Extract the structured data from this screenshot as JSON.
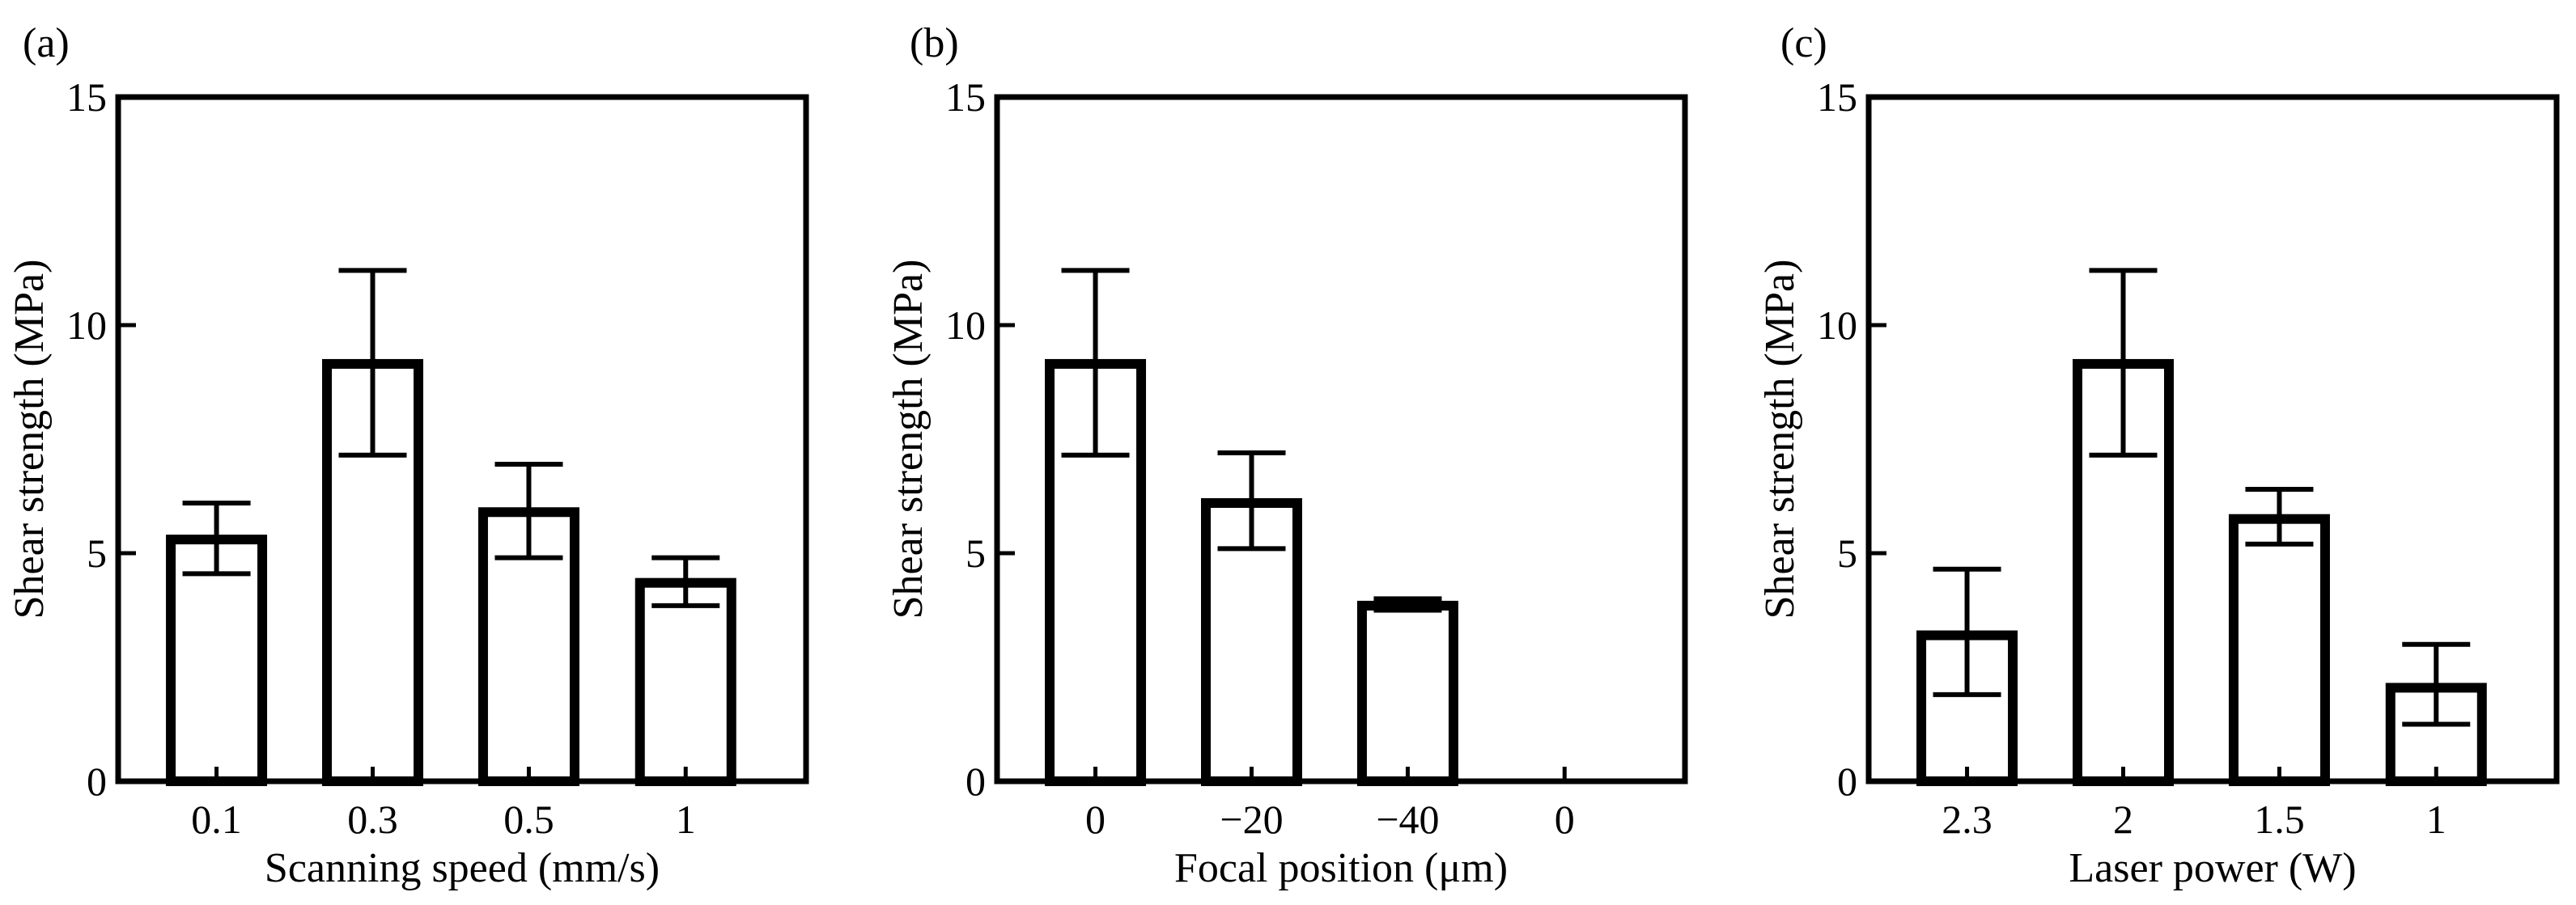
{
  "chart_data": [
    {
      "type": "bar",
      "panel_label": "(a)",
      "categories": [
        "0.1",
        "0.3",
        "0.5",
        "1"
      ],
      "values": [
        5.3,
        9.15,
        5.9,
        4.35
      ],
      "error_bars": [
        {
          "low": 4.55,
          "high": 6.1
        },
        {
          "low": 7.15,
          "high": 11.2
        },
        {
          "low": 4.9,
          "high": 6.95
        },
        {
          "low": 3.85,
          "high": 4.9
        }
      ],
      "xlabel": "Scanning speed (mm/s)",
      "ylabel": "Shear strength (MPa)",
      "ylim": [
        0,
        15
      ],
      "yticks": [
        "0",
        "5",
        "10",
        "15"
      ],
      "grid": false
    },
    {
      "type": "bar",
      "panel_label": "(b)",
      "categories": [
        "0",
        "−20",
        "−40",
        "0"
      ],
      "values": [
        9.15,
        6.1,
        3.85,
        0
      ],
      "error_bars": [
        {
          "low": 7.15,
          "high": 11.2
        },
        {
          "low": 5.1,
          "high": 7.2
        },
        {
          "low": 3.75,
          "high": 4.0
        },
        null
      ],
      "xlabel": "Focal position (μm)",
      "ylabel": "Shear strength (MPa)",
      "ylim": [
        0,
        15
      ],
      "yticks": [
        "0",
        "5",
        "10",
        "15"
      ],
      "grid": false
    },
    {
      "type": "bar",
      "panel_label": "(c)",
      "categories": [
        "2.3",
        "2",
        "1.5",
        "1"
      ],
      "values": [
        3.2,
        9.15,
        5.75,
        2.05
      ],
      "error_bars": [
        {
          "low": 1.9,
          "high": 4.65
        },
        {
          "low": 7.15,
          "high": 11.2
        },
        {
          "low": 5.2,
          "high": 6.4
        },
        {
          "low": 1.25,
          "high": 3.0
        }
      ],
      "xlabel": "Laser power (W)",
      "ylabel": "Shear strength (MPa)",
      "ylim": [
        0,
        15
      ],
      "yticks": [
        "0",
        "5",
        "10",
        "15"
      ],
      "grid": false
    }
  ]
}
